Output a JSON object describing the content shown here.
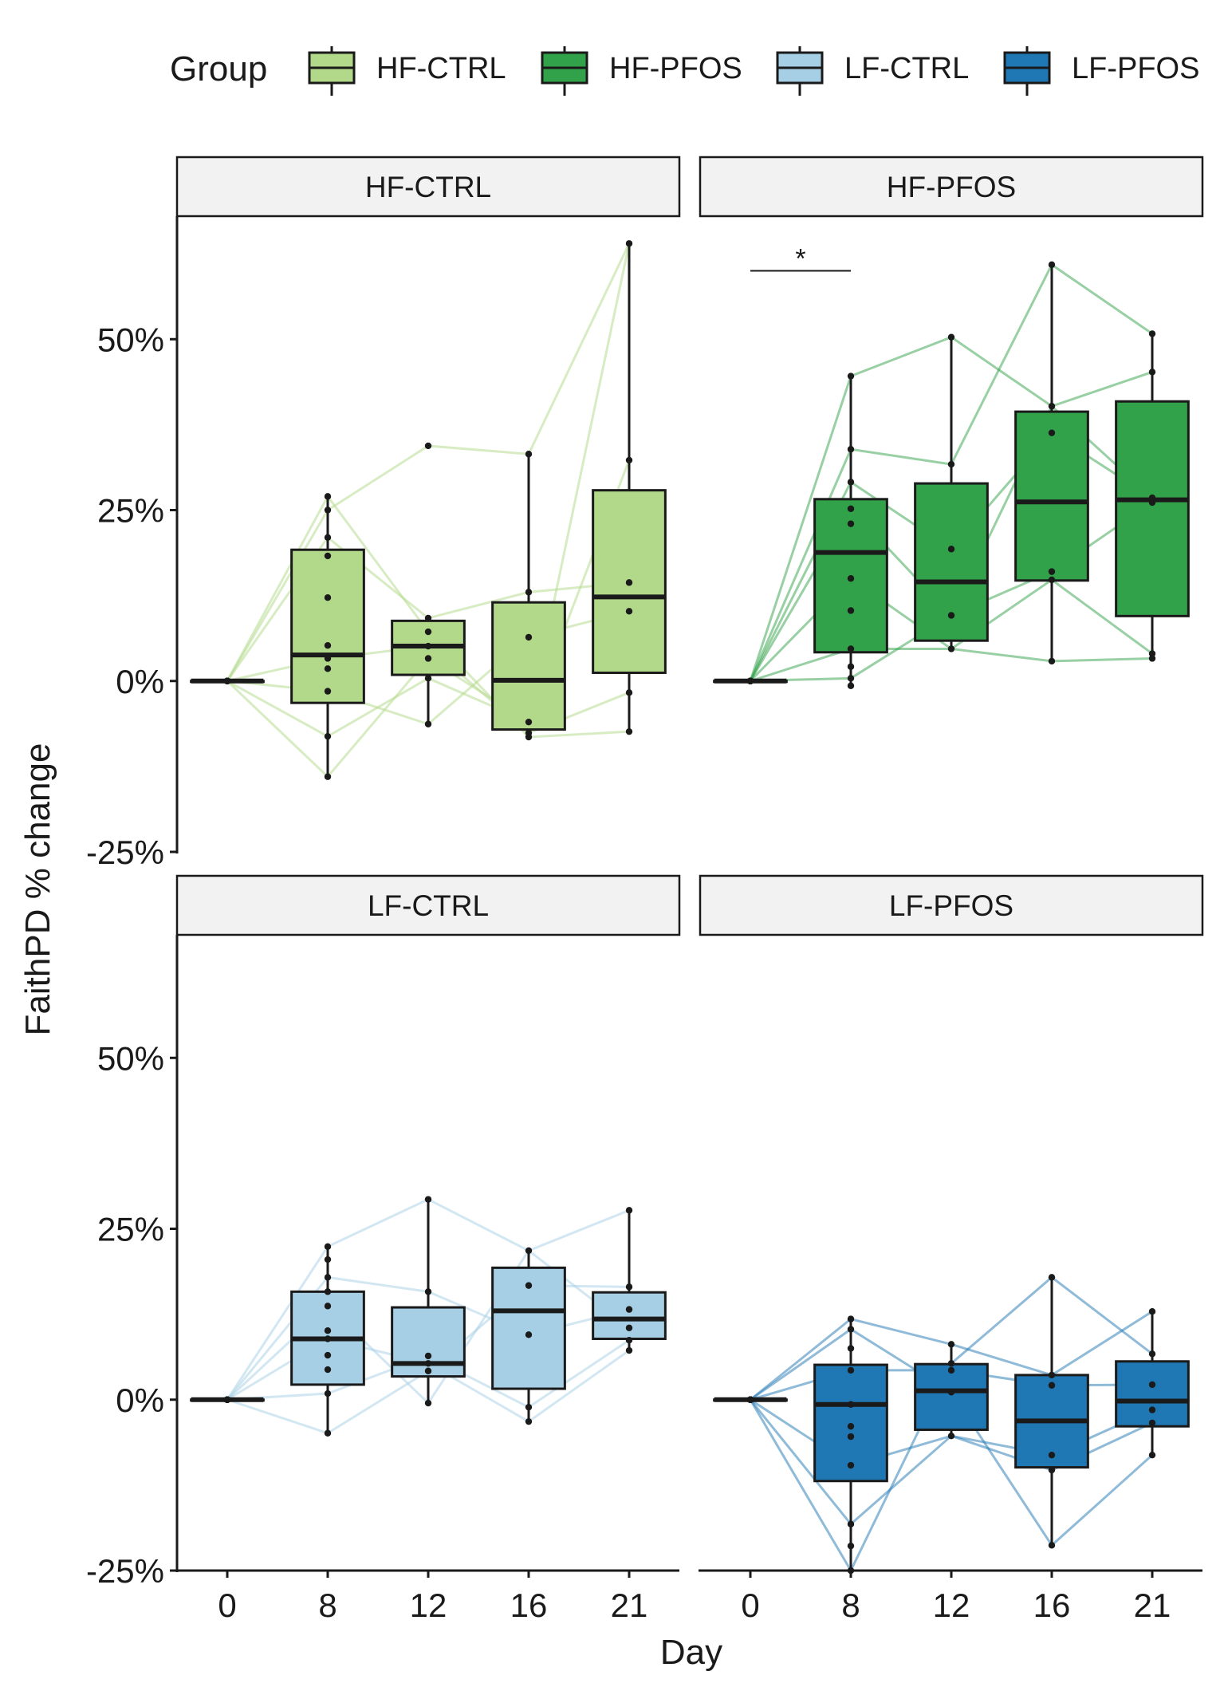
{
  "legend": {
    "title": "Group",
    "items": [
      {
        "label": "HF-CTRL",
        "fill": "#b2d98a",
        "line": "#b2d98a"
      },
      {
        "label": "HF-PFOS",
        "fill": "#31a24a",
        "line": "#31a24a"
      },
      {
        "label": "LF-CTRL",
        "fill": "#a6cfe5",
        "line": "#a6cfe5"
      },
      {
        "label": "LF-PFOS",
        "fill": "#1f78b4",
        "line": "#1f78b4"
      }
    ]
  },
  "axes": {
    "xlabel": "Day",
    "ylabel": "FaithPD % change",
    "x_ticks": [
      "0",
      "8",
      "12",
      "16",
      "21"
    ],
    "y_ticks": [
      "-25%",
      "0%",
      "25%",
      "50%"
    ],
    "ylim": [
      -25,
      68
    ]
  },
  "chart_data": {
    "type": "box",
    "categories": [
      "0",
      "8",
      "12",
      "16",
      "21"
    ],
    "panels": [
      {
        "name": "HF-CTRL",
        "fill": "#b2d98a",
        "line": "#b2d98a",
        "boxes": [
          {
            "day": "0",
            "q1": 0,
            "median": 0,
            "q3": 0,
            "low": 0,
            "high": 0
          },
          {
            "day": "8",
            "q1": -3.2,
            "median": 3.8,
            "q3": 19.2,
            "low": -14,
            "high": 27
          },
          {
            "day": "12",
            "q1": 0.9,
            "median": 5.1,
            "q3": 8.8,
            "low": -6.3,
            "high": 9.2
          },
          {
            "day": "16",
            "q1": -7.1,
            "median": 0.1,
            "q3": 11.5,
            "low": -8.2,
            "high": 33.2
          },
          {
            "day": "21",
            "q1": 1.2,
            "median": 12.3,
            "q3": 27.9,
            "low": -7.4,
            "high": 64
          }
        ],
        "points": {
          "0": [
            0,
            0,
            0,
            0,
            0,
            0,
            0,
            0,
            0
          ],
          "8": [
            27,
            25,
            21,
            18.3,
            12.2,
            5.2,
            3.3,
            1.8,
            -1.5,
            -8.1,
            -14
          ],
          "12": [
            34.4,
            9.2,
            7.2,
            5.1,
            3.3,
            0.4,
            -6.3
          ],
          "16": [
            33.2,
            13,
            6.4,
            -6,
            -7.6,
            -8.2
          ],
          "21": [
            64,
            32.3,
            14.4,
            10.2,
            -1.7,
            -7.4
          ]
        },
        "traces": [
          [
            0,
            -14,
            3.3,
            -6,
            32.3
          ],
          [
            0,
            -8.1,
            0.4,
            -6,
            64
          ],
          [
            0,
            25,
            34.4,
            33.2,
            64
          ],
          [
            0,
            21,
            9.2,
            13,
            14.4
          ],
          [
            0,
            27,
            7.2,
            -8.2,
            -7.4
          ],
          [
            0,
            3.3,
            5.1,
            -7.6,
            -1.7
          ],
          [
            0,
            -1.5,
            -6.3,
            6.4,
            10.2
          ]
        ]
      },
      {
        "name": "HF-PFOS",
        "fill": "#31a24a",
        "line": "#31a24a",
        "boxes": [
          {
            "day": "0",
            "q1": 0,
            "median": 0,
            "q3": 0,
            "low": 0,
            "high": 0
          },
          {
            "day": "8",
            "q1": 4.2,
            "median": 18.8,
            "q3": 26.6,
            "low": -0.7,
            "high": 44.6
          },
          {
            "day": "12",
            "q1": 5.9,
            "median": 14.5,
            "q3": 28.9,
            "low": 4.7,
            "high": 50.3
          },
          {
            "day": "16",
            "q1": 14.7,
            "median": 26.2,
            "q3": 39.4,
            "low": 2.9,
            "high": 60.9
          },
          {
            "day": "21",
            "q1": 9.5,
            "median": 26.5,
            "q3": 40.9,
            "low": 3.3,
            "high": 50.8
          }
        ],
        "points": {
          "0": [
            0,
            0,
            0,
            0,
            0,
            0,
            0,
            0,
            0,
            0,
            0
          ],
          "8": [
            44.6,
            33.9,
            29.1,
            25.2,
            23,
            15,
            10.3,
            4.7,
            2.1,
            0.4,
            -0.7
          ],
          "12": [
            50.3,
            31.7,
            19.3,
            9.6,
            4.7
          ],
          "16": [
            60.9,
            40.2,
            36.3,
            16,
            14.8,
            2.9
          ],
          "21": [
            50.8,
            45.2,
            26.8,
            26.1,
            4,
            3.3
          ]
        },
        "traces": [
          [
            0,
            44.6,
            50.3,
            40.2,
            45.2
          ],
          [
            0,
            33.9,
            31.7,
            60.9,
            50.8
          ],
          [
            0,
            29.1,
            19.3,
            36.3,
            26.8
          ],
          [
            0,
            25.2,
            9.6,
            16,
            26.1
          ],
          [
            0,
            15,
            4.7,
            2.9,
            3.3
          ],
          [
            0,
            4.7,
            4.7,
            14.8,
            4
          ],
          [
            0,
            0.4,
            9.6,
            40.2,
            26.8
          ]
        ],
        "significance": {
          "from": "0",
          "to": "8",
          "y": 60,
          "label": "*"
        }
      },
      {
        "name": "LF-CTRL",
        "fill": "#a6cfe5",
        "line": "#a6cfe5",
        "boxes": [
          {
            "day": "0",
            "q1": 0,
            "median": 0,
            "q3": 0,
            "low": 0,
            "high": 0
          },
          {
            "day": "8",
            "q1": 2.2,
            "median": 8.9,
            "q3": 15.8,
            "low": -4.9,
            "high": 22.4
          },
          {
            "day": "12",
            "q1": 3.4,
            "median": 5.3,
            "q3": 13.5,
            "low": -0.5,
            "high": 29.3
          },
          {
            "day": "16",
            "q1": 1.6,
            "median": 13,
            "q3": 19.3,
            "low": -3.2,
            "high": 21.8
          },
          {
            "day": "21",
            "q1": 8.9,
            "median": 11.8,
            "q3": 15.7,
            "low": 7.2,
            "high": 27.7
          }
        ],
        "points": {
          "0": [
            0,
            0,
            0,
            0,
            0,
            0,
            0,
            0,
            0,
            0,
            0
          ],
          "8": [
            22.4,
            20.5,
            17.9,
            15.8,
            13.7,
            10.1,
            8.9,
            6.5,
            4.4,
            0.9,
            -4.9
          ],
          "12": [
            29.3,
            15.8,
            6.4,
            5.3,
            4.2,
            -0.5
          ],
          "16": [
            21.8,
            16.7,
            9.5,
            -1.1,
            -3.2
          ],
          "21": [
            27.7,
            16.5,
            13.2,
            10.5,
            8.7,
            7.2
          ]
        },
        "traces": [
          [
            0,
            22.4,
            29.3,
            21.8,
            27.7
          ],
          [
            0,
            -4.9,
            4.2,
            16.7,
            16.5
          ],
          [
            0,
            17.9,
            15.8,
            9.5,
            13.2
          ],
          [
            0,
            8.9,
            5.3,
            -3.2,
            7.2
          ],
          [
            0,
            13.7,
            -0.5,
            21.8,
            10.5
          ],
          [
            0,
            0.9,
            6.4,
            -1.1,
            8.7
          ]
        ]
      },
      {
        "name": "LF-PFOS",
        "fill": "#1f78b4",
        "line": "#1f78b4",
        "boxes": [
          {
            "day": "0",
            "q1": 0,
            "median": 0,
            "q3": 0,
            "low": 0,
            "high": 0
          },
          {
            "day": "8",
            "q1": -11.9,
            "median": -0.7,
            "q3": 5.1,
            "low": -25,
            "high": 11.8
          },
          {
            "day": "12",
            "q1": -4.4,
            "median": 1.3,
            "q3": 5.2,
            "low": -5.3,
            "high": 8.1
          },
          {
            "day": "16",
            "q1": -9.9,
            "median": -3.1,
            "q3": 3.6,
            "low": -21.3,
            "high": 17.9
          },
          {
            "day": "21",
            "q1": -3.9,
            "median": -0.2,
            "q3": 5.6,
            "low": -8.1,
            "high": 12.9
          }
        ],
        "points": {
          "0": [
            0,
            0,
            0,
            0,
            0,
            0,
            0,
            0,
            0,
            0,
            0
          ],
          "8": [
            11.8,
            10.3,
            7.5,
            4.3,
            -0.7,
            -3.9,
            -5.4,
            -9.6,
            -18.2,
            -21.4,
            -25
          ],
          "12": [
            8.1,
            5.3,
            4.3,
            1.1,
            -5.3
          ],
          "16": [
            17.9,
            3.6,
            2.1,
            -8.1,
            -10.3,
            -21.3
          ],
          "21": [
            12.9,
            6.7,
            2.2,
            -1.5,
            -3.4,
            -8.1
          ]
        },
        "traces": [
          [
            0,
            11.8,
            8.1,
            3.6,
            12.9
          ],
          [
            0,
            -25,
            5.3,
            17.9,
            6.7
          ],
          [
            0,
            10.3,
            1.1,
            -21.3,
            -8.1
          ],
          [
            0,
            -9.6,
            -5.3,
            -10.3,
            -3.4
          ],
          [
            0,
            4.3,
            4.3,
            2.1,
            2.2
          ],
          [
            0,
            -18.2,
            -5.3,
            -8.1,
            -1.5
          ]
        ]
      }
    ]
  }
}
